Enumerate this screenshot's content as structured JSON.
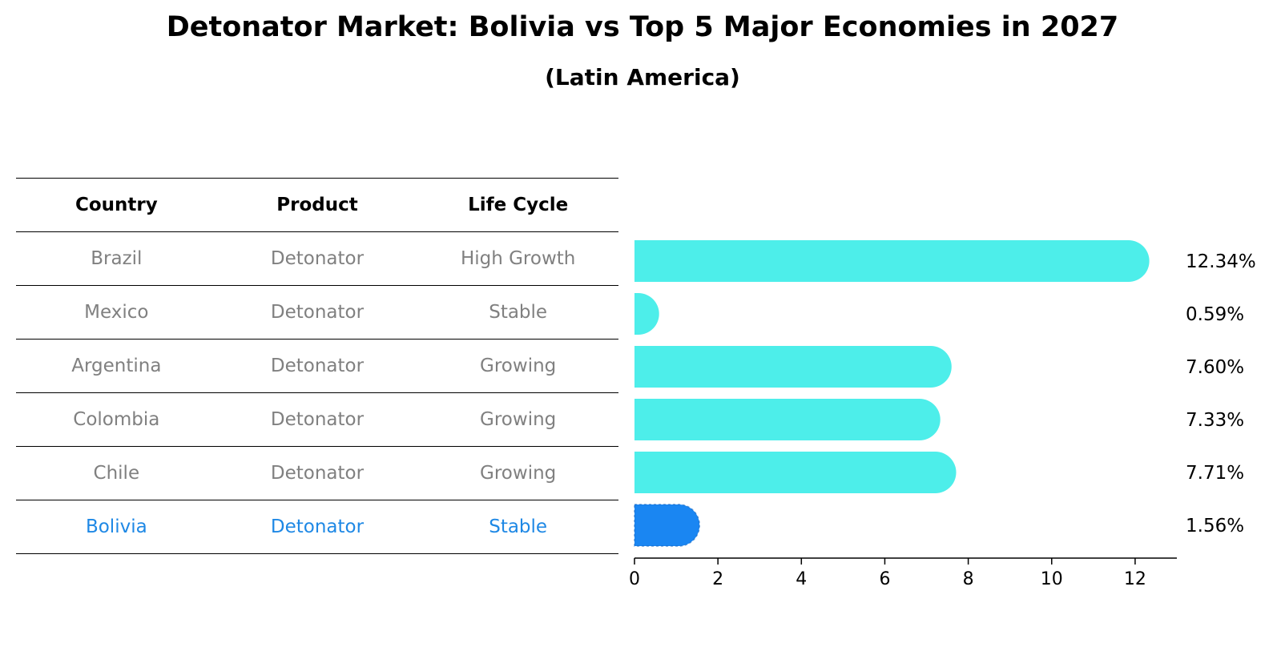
{
  "title": "Detonator Market: Bolivia vs Top 5 Major Economies in 2027",
  "subtitle": "(Latin America)",
  "table": {
    "headers": [
      "Country",
      "Product",
      "Life Cycle"
    ],
    "rows": [
      [
        "Brazil",
        "Detonator",
        "High Growth"
      ],
      [
        "Mexico",
        "Detonator",
        "Stable"
      ],
      [
        "Argentina",
        "Detonator",
        "Growing"
      ],
      [
        "Colombia",
        "Detonator",
        "Growing"
      ],
      [
        "Chile",
        "Detonator",
        "Growing"
      ],
      [
        "Bolivia",
        "Detonator",
        "Stable"
      ]
    ],
    "highlight_row": 5
  },
  "chart_data": {
    "type": "bar",
    "orientation": "horizontal",
    "categories": [
      "Brazil",
      "Mexico",
      "Argentina",
      "Colombia",
      "Chile",
      "Bolivia"
    ],
    "values": [
      12.34,
      0.59,
      7.6,
      7.33,
      7.71,
      1.56
    ],
    "value_labels": [
      "12.34%",
      "0.59%",
      "7.60%",
      "7.33%",
      "7.71%",
      "1.56%"
    ],
    "xlim": [
      0,
      13
    ],
    "xticks": [
      0,
      2,
      4,
      6,
      8,
      10,
      12
    ],
    "grid": false,
    "colors": {
      "default": "#4deeea",
      "highlight": "#1a86f2"
    },
    "highlight_index": 5
  }
}
